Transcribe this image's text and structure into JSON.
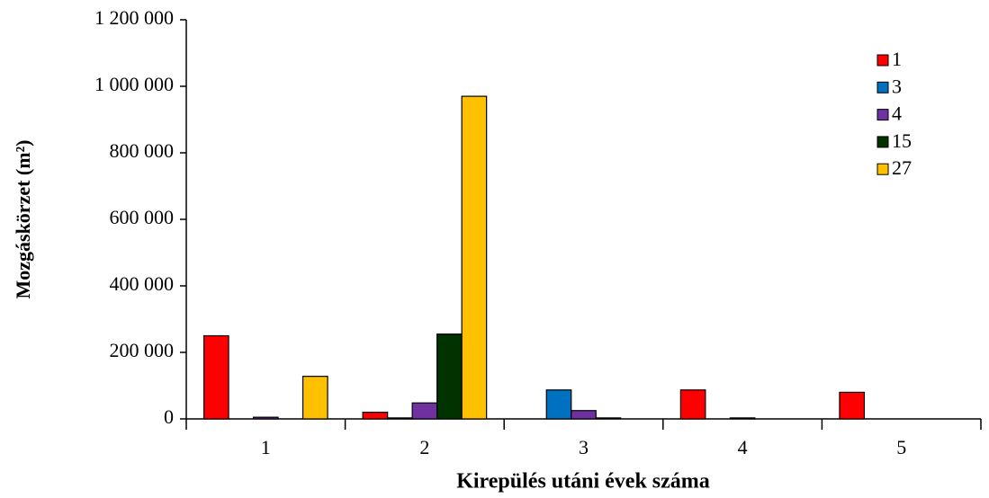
{
  "chart_data": {
    "type": "bar",
    "xlabel": "Kirepülés utáni évek száma",
    "ylabel": "Mozgáskörzet (m²)",
    "categories": [
      "1",
      "2",
      "3",
      "4",
      "5"
    ],
    "series": [
      {
        "name": "1",
        "color": "#ff0000",
        "values": [
          250000,
          20000,
          0,
          87000,
          80000
        ]
      },
      {
        "name": "3",
        "color": "#0070c0",
        "values": [
          0,
          3000,
          87000,
          0,
          0
        ]
      },
      {
        "name": "4",
        "color": "#7030a0",
        "values": [
          5000,
          48000,
          25000,
          3000,
          0
        ]
      },
      {
        "name": "15",
        "color": "#003300",
        "values": [
          0,
          255000,
          3000,
          0,
          0
        ]
      },
      {
        "name": "27",
        "color": "#ffc000",
        "values": [
          128000,
          970000,
          0,
          0,
          0
        ]
      }
    ],
    "ylim": [
      0,
      1200000
    ],
    "yticks": [
      0,
      {
        "value": 200000,
        "label": "200 000"
      },
      {
        "value": 400000,
        "label": "400 000"
      },
      {
        "value": 600000,
        "label": "600 000"
      },
      {
        "value": 800000,
        "label": "800 000"
      },
      {
        "value": 1000000,
        "label": "1 000 000"
      },
      {
        "value": 1200000,
        "label": "1 200 000"
      }
    ],
    "grid": false,
    "legend": "upper right"
  }
}
